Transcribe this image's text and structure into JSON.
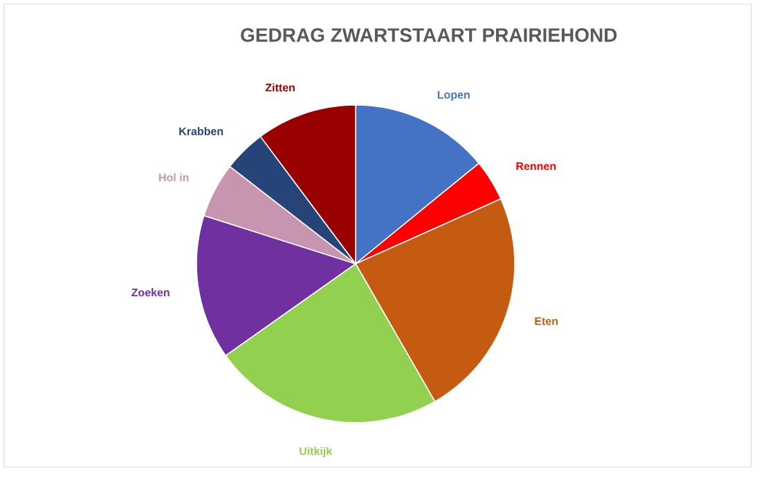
{
  "chart_data": {
    "type": "pie",
    "title": "GEDRAG ZWARTSTAART PRAIRIEHOND",
    "categories": [
      "Lopen",
      "Rennen",
      "Eten",
      "Uitkijk",
      "Zoeken",
      "Hol in",
      "Krabben",
      "Zitten"
    ],
    "values": [
      14.1,
      4.2,
      23.4,
      23.5,
      14.7,
      5.6,
      4.3,
      10.2
    ],
    "colors": [
      "#4472c4",
      "#ff0000",
      "#c55a11",
      "#92d050",
      "#7030a0",
      "#c795b0",
      "#264478",
      "#990000"
    ]
  }
}
